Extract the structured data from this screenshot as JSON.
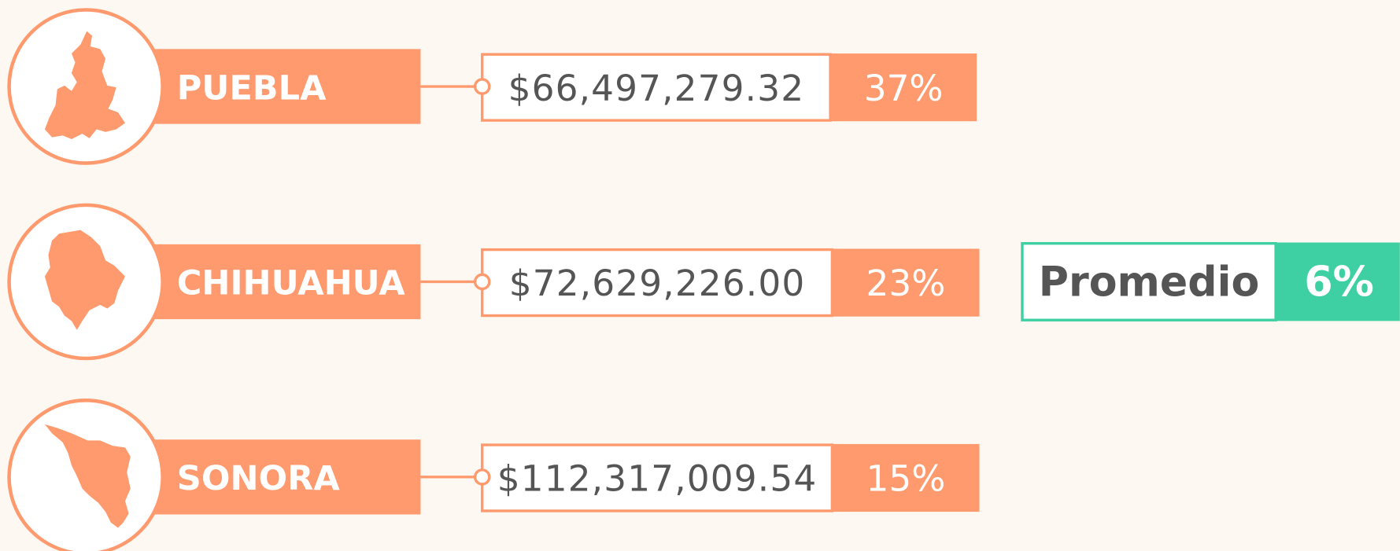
{
  "rows": [
    {
      "name": "PUEBLA",
      "amount": "$66,497,279.32",
      "share": "37%"
    },
    {
      "name": "CHIHUAHUA",
      "amount": "$72,629,226.00",
      "share": "23%"
    },
    {
      "name": "SONORA",
      "amount": "$112,317,009.54",
      "share": "15%"
    }
  ],
  "summary": {
    "label": "Promedio",
    "value": "6%"
  }
}
